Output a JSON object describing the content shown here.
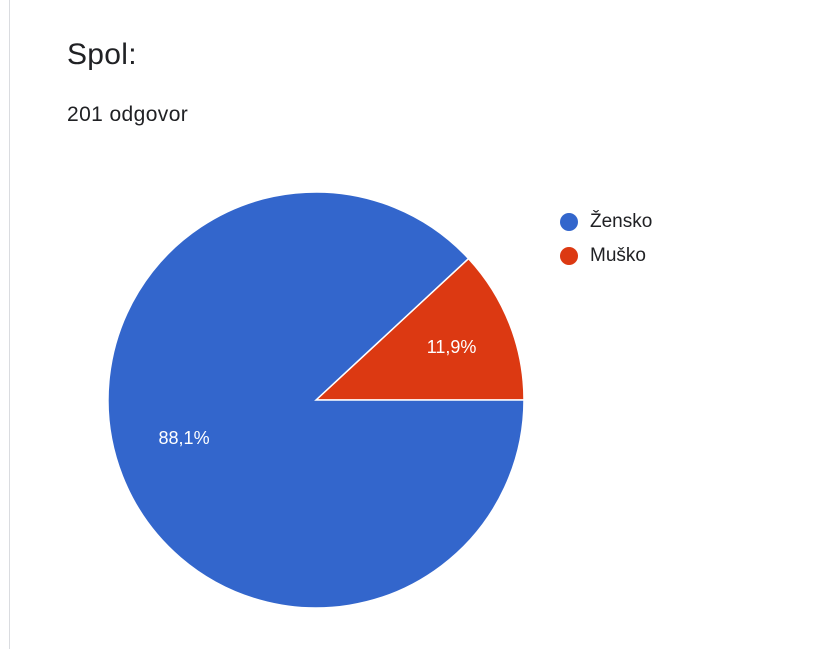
{
  "question": {
    "title": "Spol:",
    "response_count": "201 odgovor"
  },
  "colors": {
    "series_1": "#3366cc",
    "series_2": "#dc3912",
    "text": "#202124",
    "slice_label": "#ffffff"
  },
  "chart_data": {
    "type": "pie",
    "title": "Spol:",
    "categories": [
      "Žensko",
      "Muško"
    ],
    "values": [
      88.1,
      11.9
    ],
    "labels": [
      "88,1%",
      "11,9%"
    ],
    "legend_position": "right"
  }
}
